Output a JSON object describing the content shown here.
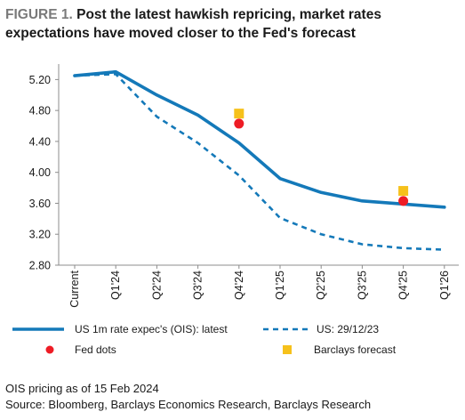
{
  "title": {
    "figure_label": "FIGURE 1.",
    "text": "Post the latest hawkish repricing, market rates expectations have moved closer to the Fed's forecast"
  },
  "footer": {
    "note": "OIS pricing as of 15 Feb 2024",
    "source": "Source: Bloomberg, Barclays Economics Research, Barclays Research"
  },
  "colors": {
    "series_line": "#1479b9",
    "fed_dots": "#ee1c25",
    "barclays": "#f6c11b",
    "axis": "#8c8c8c"
  },
  "chart_data": {
    "type": "line",
    "categories": [
      "Current",
      "Q1'24",
      "Q2'24",
      "Q3'24",
      "Q4'24",
      "Q1'25",
      "Q2'25",
      "Q3'25",
      "Q4'25",
      "Q1'26"
    ],
    "ylim": [
      2.8,
      5.4
    ],
    "yticks": [
      "5.20",
      "4.80",
      "4.40",
      "4.00",
      "3.60",
      "3.20",
      "2.80"
    ],
    "grid": false,
    "series": [
      {
        "name": "US 1m rate expec's (OIS): latest",
        "style": "solid",
        "values": [
          5.25,
          5.3,
          5.0,
          4.74,
          4.38,
          3.92,
          3.74,
          3.63,
          3.59,
          3.55
        ]
      },
      {
        "name": "US: 29/12/23",
        "style": "dashed",
        "values": [
          5.25,
          5.27,
          4.72,
          4.38,
          3.96,
          3.41,
          3.2,
          3.07,
          3.02,
          3.0
        ]
      }
    ],
    "points": [
      {
        "name": "Fed dots",
        "marker": "circle",
        "values": [
          null,
          null,
          null,
          null,
          4.63,
          null,
          null,
          null,
          3.63,
          null
        ]
      },
      {
        "name": "Barclays forecast",
        "marker": "square",
        "values": [
          null,
          null,
          null,
          null,
          4.76,
          null,
          null,
          null,
          3.76,
          null
        ]
      }
    ]
  }
}
